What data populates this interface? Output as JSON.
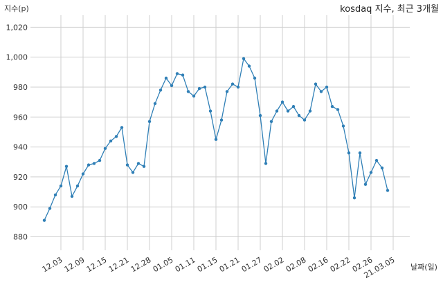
{
  "chart_data": {
    "type": "line",
    "title": "kosdaq 지수, 최근 3개월",
    "ylabel": "지수(p)",
    "xlabel": "날짜(일)",
    "ylim": [
      871,
      1028
    ],
    "yticks": [
      880,
      900,
      920,
      940,
      960,
      980,
      1000,
      1020
    ],
    "ytick_labels": [
      "880",
      "900",
      "920",
      "940",
      "960",
      "980",
      "1,000",
      "1,020"
    ],
    "grid": true,
    "x_tick_labels": [
      "12.03",
      "12.09",
      "12.15",
      "12.21",
      "12.28",
      "01.05",
      "01.11",
      "01.15",
      "01.21",
      "01.27",
      "02.02",
      "02.08",
      "02.16",
      "02.22",
      "02.26",
      "21.03.05"
    ],
    "x_tick_index": [
      3,
      7,
      11,
      15,
      19,
      23,
      27,
      31,
      35,
      39,
      43,
      47,
      51,
      55,
      59,
      63
    ],
    "x_range": [
      -2.5,
      66
    ],
    "series": [
      {
        "values": [
          891,
          899,
          908,
          914,
          927,
          907,
          914,
          922,
          928,
          929,
          931,
          939,
          944,
          947,
          953,
          928,
          923,
          929,
          927,
          957,
          969,
          978,
          986,
          981,
          989,
          988,
          977,
          974,
          979,
          980,
          964,
          945,
          958,
          977,
          982,
          980,
          999,
          994,
          986,
          961,
          929,
          957,
          964,
          970,
          964,
          967,
          961,
          958,
          964,
          982,
          977,
          980,
          967,
          965,
          954,
          936,
          906,
          936,
          915,
          923,
          931,
          926,
          911
        ]
      }
    ]
  }
}
